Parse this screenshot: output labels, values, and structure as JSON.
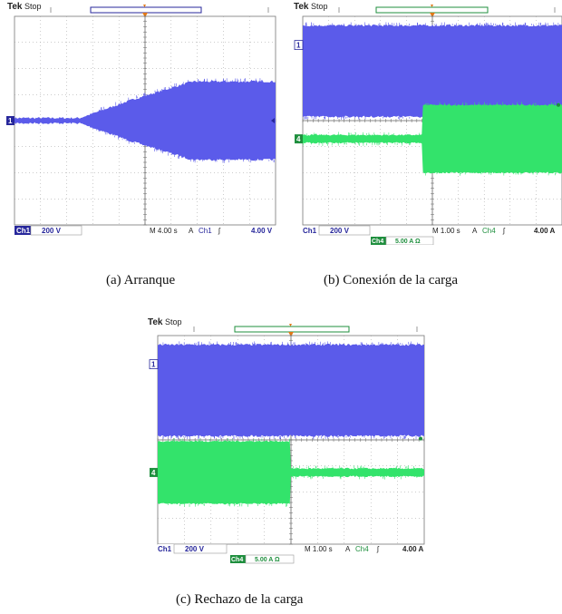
{
  "colors": {
    "ch1": "#5b5bea",
    "ch4": "#33e36b",
    "ch1_label": "#27279b",
    "ch4_label": "#1f8f3e",
    "grid": "#9a9a9a",
    "trigger": "#e07818"
  },
  "panels": [
    {
      "id": "a",
      "header": {
        "brand": "Tek",
        "state": "Stop"
      },
      "caption": "(a) Arranque",
      "ch1_marker": "1",
      "status": {
        "ch1_tag": "Ch1",
        "ch1_scale": "200 V",
        "timebase": "M 4.00 s",
        "trig_mode": "A",
        "trig_src": "Ch1",
        "trig_slope": "ʃ",
        "trig_level": "4.00 V"
      }
    },
    {
      "id": "b",
      "header": {
        "brand": "Tek",
        "state": "Stop"
      },
      "caption": "(b) Conexión de la carga",
      "ch1_marker": "1",
      "ch4_marker": "4",
      "status": {
        "ch1_tag": "Ch1",
        "ch1_scale": "200 V",
        "timebase": "M 1.00 s",
        "trig_mode": "A",
        "trig_src": "Ch4",
        "trig_slope": "ʃ",
        "trig_level": "4.00 A",
        "ch4_tag": "Ch4",
        "ch4_scale": "5.00 A Ω"
      }
    },
    {
      "id": "c",
      "header": {
        "brand": "Tek",
        "state": "Stop"
      },
      "caption": "(c) Rechazo de la carga",
      "ch1_marker": "1",
      "ch4_marker": "4",
      "status": {
        "ch1_tag": "Ch1",
        "ch1_scale": "200 V",
        "timebase": "M 1.00 s",
        "trig_mode": "A",
        "trig_src": "Ch4",
        "trig_slope": "ʃ",
        "trig_level": "4.00 A",
        "ch4_tag": "Ch4",
        "ch4_scale": "5.00 A Ω"
      }
    }
  ],
  "chart_data": [
    {
      "type": "area",
      "grid": true,
      "x_divisions": 10,
      "y_divisions": 8,
      "series": [
        {
          "channel": "Ch1",
          "envelope_div": [
            [
              0,
              0.1
            ],
            [
              2.5,
              0.1
            ],
            [
              4.5,
              0.8
            ],
            [
              6.8,
              1.5
            ],
            [
              10,
              1.5
            ]
          ]
        }
      ]
    },
    {
      "type": "area",
      "grid": true,
      "x_divisions": 10,
      "y_divisions": 8,
      "series": [
        {
          "channel": "Ch1",
          "envelope_div": [
            [
              0,
              3.5
            ],
            [
              10,
              3.5
            ]
          ]
        },
        {
          "channel": "Ch4",
          "offset_div": -0.7,
          "before_div": 0.15,
          "after_div": 1.3,
          "step_at_div": 4.6
        }
      ]
    },
    {
      "type": "area",
      "grid": true,
      "x_divisions": 10,
      "y_divisions": 8,
      "series": [
        {
          "channel": "Ch1",
          "envelope_div": [
            [
              0,
              3.5
            ],
            [
              10,
              3.5
            ]
          ]
        },
        {
          "channel": "Ch4",
          "offset_div": -1.25,
          "before_div": 1.2,
          "after_div": 0.15,
          "step_at_div": 5.0
        }
      ]
    }
  ]
}
